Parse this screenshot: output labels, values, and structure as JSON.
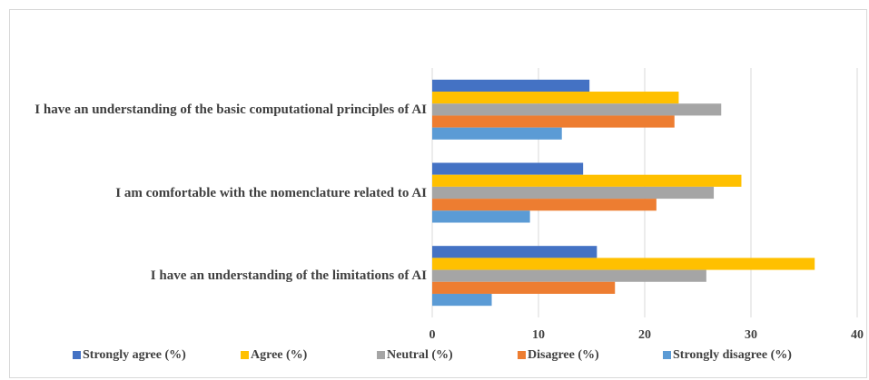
{
  "chart_data": {
    "type": "bar",
    "orientation": "horizontal",
    "categories": [
      "I have an understanding of the basic computational principles of AI",
      "I am comfortable with the nomenclature related to AI",
      "I have an understanding of the limitations of AI"
    ],
    "series": [
      {
        "name": "Strongly agree (%)",
        "color": "#4472c4",
        "values": [
          14.8,
          14.2,
          15.5
        ]
      },
      {
        "name": "Agree (%)",
        "color": "#ffc000",
        "values": [
          23.2,
          29.1,
          36.0
        ]
      },
      {
        "name": "Neutral (%)",
        "color": "#a5a5a5",
        "values": [
          27.2,
          26.5,
          25.8
        ]
      },
      {
        "name": "Disagree (%)",
        "color": "#ed7d31",
        "values": [
          22.8,
          21.1,
          17.2
        ]
      },
      {
        "name": "Strongly disagree  (%)",
        "color": "#5b9bd5",
        "values": [
          12.2,
          9.2,
          5.6
        ]
      }
    ],
    "xlim": [
      0,
      40
    ],
    "xticks": [
      0,
      10,
      20,
      30,
      40
    ],
    "grid": true,
    "legend": "bottom"
  }
}
